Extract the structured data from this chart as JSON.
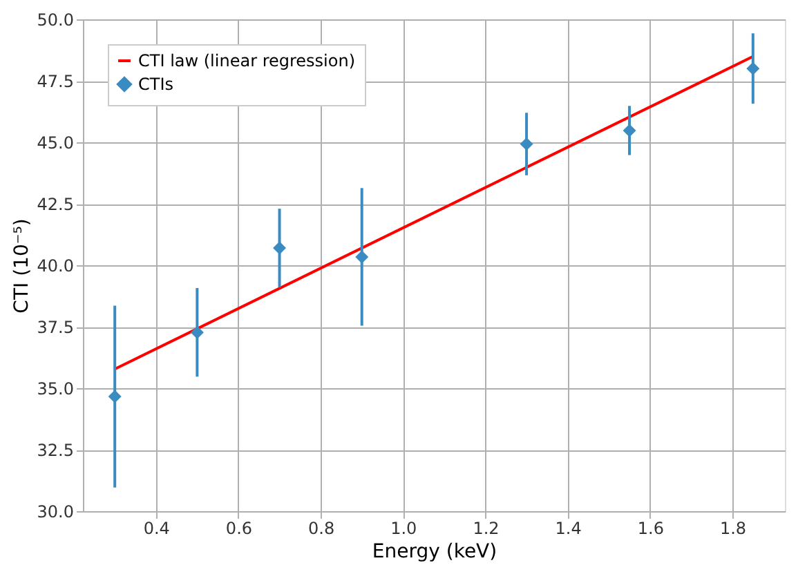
{
  "chart_data": {
    "type": "scatter",
    "xlabel": "Energy (keV)",
    "ylabel": "CTI (10⁻⁵)",
    "xlim": [
      0.2225,
      1.9275
    ],
    "ylim": [
      30,
      50
    ],
    "xticks": [
      0.4,
      0.6,
      0.8,
      {
        "value": 1,
        "label": "1.0"
      },
      1.2,
      1.4,
      1.6,
      1.8
    ],
    "yticks": [
      {
        "value": 30,
        "label": "30.0"
      },
      32.5,
      {
        "value": 35,
        "label": "35.0"
      },
      37.5,
      {
        "value": 40,
        "label": "40.0"
      },
      42.5,
      {
        "value": 45,
        "label": "45.0"
      },
      47.5,
      {
        "value": 50,
        "label": "50.0"
      }
    ],
    "grid": true,
    "legend": "top left",
    "series": [
      {
        "name": "CTI law (linear regression)",
        "type": "line",
        "color": "#ff0000",
        "x": [
          0.3,
          1.85
        ],
        "values": [
          35.78,
          48.49
        ],
        "marker": "none",
        "line_style": "solid"
      },
      {
        "name": "CTIs",
        "color": "#3a8bc1",
        "marker": "diamond",
        "x": [
          0.3,
          0.5,
          0.7,
          0.9,
          1.3,
          1.55,
          1.85
        ],
        "values": [
          34.66,
          37.27,
          40.7,
          40.34,
          44.93,
          45.48,
          48.0
        ],
        "errors": [
          3.7,
          1.8,
          1.6,
          2.8,
          1.27,
          1.0,
          1.43
        ]
      }
    ]
  }
}
